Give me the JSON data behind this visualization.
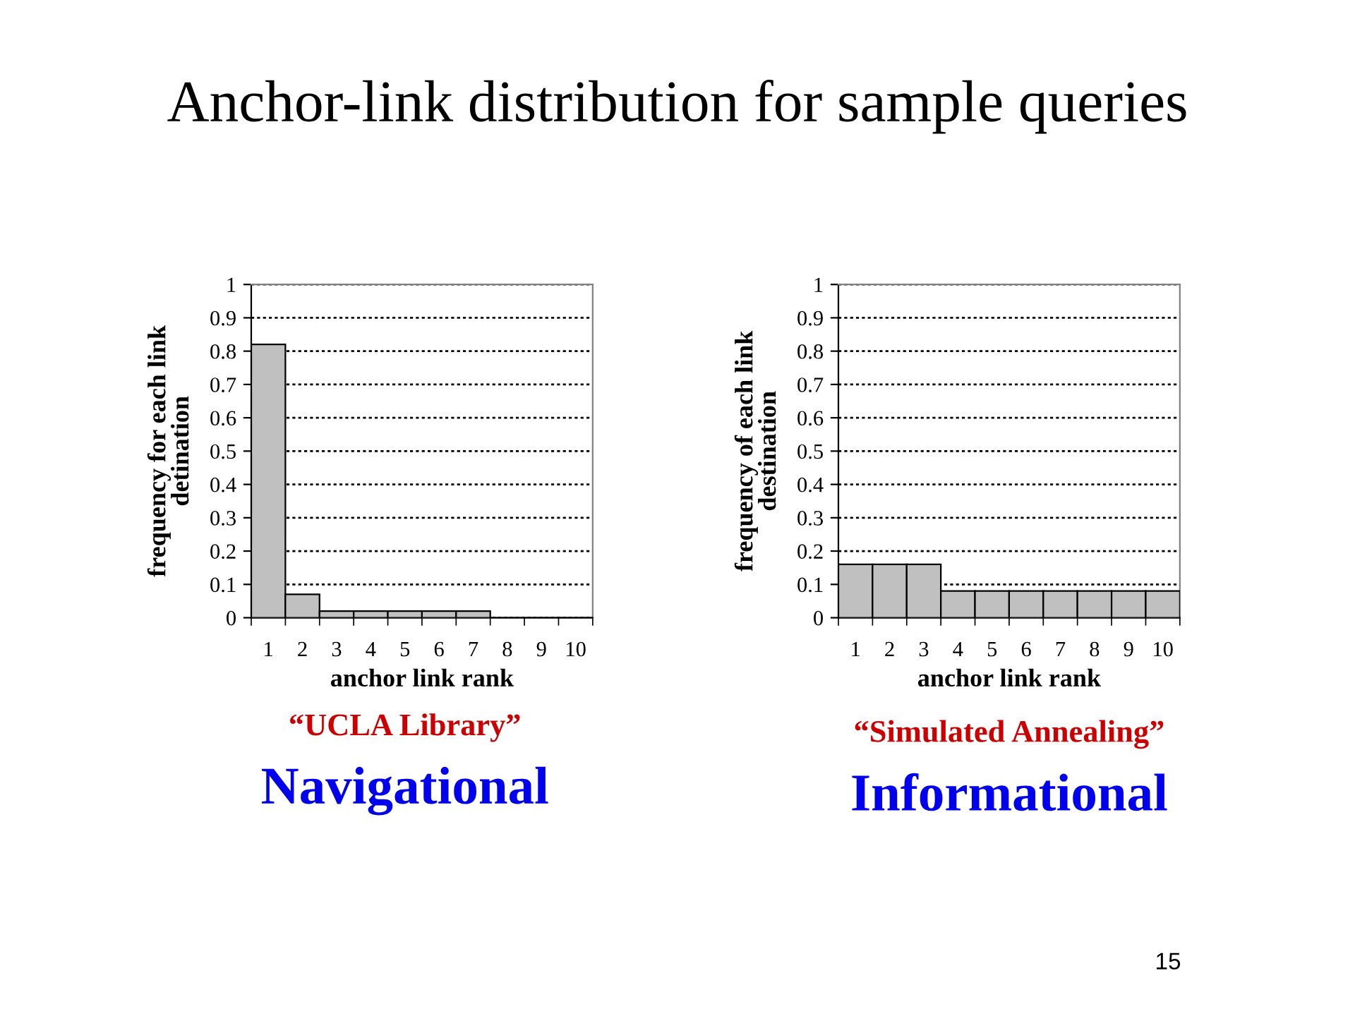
{
  "chart_data": [
    {
      "type": "bar",
      "title": "Anchor-link distribution for sample queries",
      "xlabel": "anchor link rank",
      "ylabel": "frequency for each link\ndetination",
      "categories": [
        "1",
        "2",
        "3",
        "4",
        "5",
        "6",
        "7",
        "8",
        "9",
        "10"
      ],
      "values": [
        0.82,
        0.07,
        0.02,
        0.02,
        0.02,
        0.02,
        0.02,
        0,
        0,
        0
      ],
      "color": "#c0c0c0",
      "ylim": [
        0,
        1
      ],
      "yticks": [
        0,
        0.1,
        0.2,
        0.3,
        0.4,
        0.5,
        0.6,
        0.7,
        0.8,
        0.9,
        1
      ],
      "grid": "y",
      "annotations": [
        "“UCLA Library”",
        "Navigational"
      ]
    },
    {
      "type": "bar",
      "xlabel": "anchor link rank",
      "ylabel": "frequency of each link\ndestination",
      "categories": [
        "1",
        "2",
        "3",
        "4",
        "5",
        "6",
        "7",
        "8",
        "9",
        "10"
      ],
      "values": [
        0.16,
        0.16,
        0.16,
        0.08,
        0.08,
        0.08,
        0.08,
        0.08,
        0.08,
        0.08
      ],
      "color": "#c0c0c0",
      "ylim": [
        0,
        1
      ],
      "yticks": [
        0,
        0.1,
        0.2,
        0.3,
        0.4,
        0.5,
        0.6,
        0.7,
        0.8,
        0.9,
        1
      ],
      "grid": "y",
      "annotations": [
        "“Simulated Annealing”",
        "Informational",
        "15"
      ]
    }
  ]
}
